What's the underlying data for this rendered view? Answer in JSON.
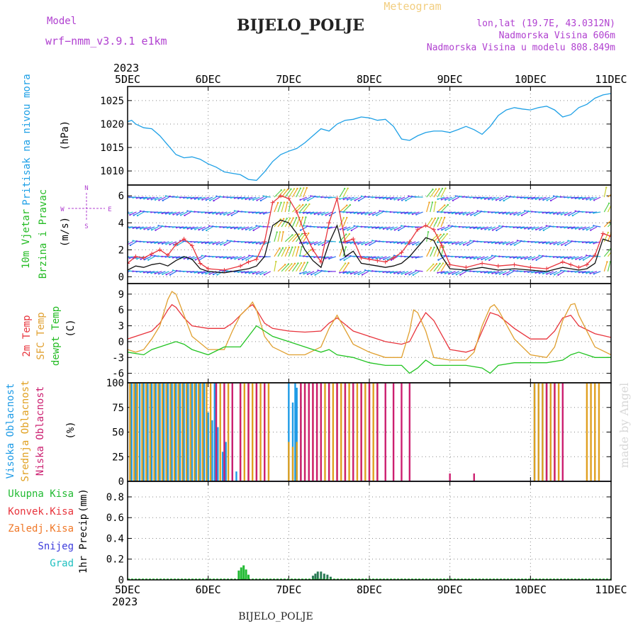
{
  "header": {
    "title": "Meteogram",
    "station": "BIJELO_POLJE",
    "model_label": "Model",
    "model_name": "wrf−nmm_v3.9.1  e1km",
    "lonlat": "lon,lat (19.7E, 43.0312N)",
    "elevation": "Nadmorska Visina 606m",
    "model_elevation": "Nadmorska Visina u modelu 808.849m",
    "watermark": "made by Angel",
    "footer_station": "BIJELO_POLJE"
  },
  "colors": {
    "pressure": "#1ea0e6",
    "temp2m": "#e8343c",
    "sfctemp": "#e0a030",
    "dewpt": "#22c422",
    "high_cloud": "#1e9be6",
    "mid_cloud": "#e0a020",
    "low_cloud": "#cc1f70",
    "precip_total": "#22bb33",
    "precip_conv": "#e8343c",
    "precip_frz": "#f07828",
    "snow": "#3c3cdc",
    "hail": "#20c0c0",
    "purple": "#b040d0",
    "green_label": "#22bb22"
  },
  "x_axis": {
    "year": "2023",
    "ticks": [
      "5DEC",
      "6DEC",
      "7DEC",
      "8DEC",
      "9DEC",
      "10DEC",
      "11DEC"
    ],
    "range_days": [
      0,
      6
    ]
  },
  "chart_data": [
    {
      "type": "line",
      "ylabel_name": "Pritisak na nivou mora",
      "ylabel_unit": "(hPa)",
      "ylim": [
        1007,
        1028
      ],
      "yticks": [
        1010,
        1015,
        1020,
        1025
      ],
      "grid": true,
      "series": [
        {
          "key": "pressure",
          "x": [
            0,
            0.05,
            0.1,
            0.2,
            0.3,
            0.4,
            0.5,
            0.6,
            0.7,
            0.8,
            0.9,
            1.0,
            1.1,
            1.2,
            1.3,
            1.4,
            1.5,
            1.6,
            1.7,
            1.8,
            1.9,
            2.0,
            2.1,
            2.2,
            2.3,
            2.4,
            2.5,
            2.6,
            2.7,
            2.8,
            2.9,
            3.0,
            3.1,
            3.2,
            3.3,
            3.4,
            3.5,
            3.6,
            3.7,
            3.8,
            3.9,
            4.0,
            4.1,
            4.2,
            4.3,
            4.4,
            4.5,
            4.6,
            4.7,
            4.8,
            4.9,
            5.0,
            5.1,
            5.2,
            5.3,
            5.4,
            5.5,
            5.6,
            5.7,
            5.8,
            5.9,
            6.0
          ],
          "y": [
            1020.5,
            1020.8,
            1020.0,
            1019.2,
            1019.0,
            1017.5,
            1015.5,
            1013.5,
            1012.8,
            1013.0,
            1012.5,
            1011.5,
            1010.8,
            1009.8,
            1009.5,
            1009.2,
            1008.2,
            1008.0,
            1009.8,
            1012.0,
            1013.5,
            1014.2,
            1014.8,
            1016.0,
            1017.5,
            1019.0,
            1018.5,
            1020.0,
            1020.8,
            1021.0,
            1021.5,
            1021.3,
            1020.8,
            1021.0,
            1019.5,
            1016.8,
            1016.5,
            1017.5,
            1018.2,
            1018.5,
            1018.5,
            1018.2,
            1018.8,
            1019.5,
            1018.8,
            1017.8,
            1019.5,
            1021.8,
            1023.0,
            1023.5,
            1023.2,
            1023.0,
            1023.5,
            1023.8,
            1023.0,
            1021.5,
            1022.0,
            1023.5,
            1024.2,
            1025.5,
            1026.2,
            1026.5
          ]
        }
      ]
    },
    {
      "type": "line",
      "ylabel_name": "10m Vjetar",
      "ylabel_name2": "Brzina i Pravac",
      "ylabel_unit": "(m/s)",
      "compass": {
        "n": "N",
        "s": "S",
        "e": "E",
        "w": "W"
      },
      "ylim": [
        -0.5,
        6.8
      ],
      "yticks": [
        0,
        2,
        4,
        6
      ],
      "grid": true,
      "series": [
        {
          "key": "speed",
          "x": [
            0,
            0.1,
            0.2,
            0.3,
            0.4,
            0.5,
            0.6,
            0.7,
            0.8,
            0.9,
            1.0,
            1.2,
            1.4,
            1.5,
            1.6,
            1.7,
            1.8,
            1.9,
            2.0,
            2.1,
            2.2,
            2.3,
            2.4,
            2.5,
            2.6,
            2.7,
            2.8,
            2.9,
            3.0,
            3.1,
            3.2,
            3.3,
            3.4,
            3.5,
            3.6,
            3.7,
            3.8,
            3.9,
            4.0,
            4.2,
            4.4,
            4.6,
            4.8,
            5.0,
            5.2,
            5.4,
            5.5,
            5.6,
            5.7,
            5.8,
            5.9,
            6.0
          ],
          "y": [
            0.5,
            0.8,
            0.7,
            0.9,
            1.0,
            0.8,
            1.2,
            1.5,
            1.3,
            0.6,
            0.4,
            0.3,
            0.5,
            0.6,
            0.8,
            1.5,
            3.8,
            4.2,
            4.0,
            3.2,
            2.0,
            1.2,
            0.7,
            2.5,
            3.8,
            1.5,
            1.9,
            1.0,
            0.9,
            0.8,
            0.7,
            0.8,
            1.0,
            1.5,
            2.2,
            2.9,
            2.7,
            1.5,
            0.6,
            0.5,
            0.7,
            0.5,
            0.6,
            0.5,
            0.4,
            0.7,
            0.6,
            0.5,
            0.6,
            1.0,
            2.8,
            2.6
          ]
        },
        {
          "key": "gust",
          "x": [
            0,
            0.1,
            0.2,
            0.3,
            0.4,
            0.5,
            0.6,
            0.7,
            0.8,
            0.9,
            1.0,
            1.2,
            1.4,
            1.5,
            1.6,
            1.7,
            1.8,
            1.9,
            2.0,
            2.1,
            2.2,
            2.3,
            2.4,
            2.5,
            2.6,
            2.7,
            2.8,
            2.9,
            3.0,
            3.1,
            3.2,
            3.3,
            3.4,
            3.5,
            3.6,
            3.7,
            3.8,
            3.9,
            4.0,
            4.2,
            4.4,
            4.6,
            4.8,
            5.0,
            5.2,
            5.4,
            5.5,
            5.6,
            5.7,
            5.8,
            5.9,
            6.0
          ],
          "y": [
            1.0,
            1.5,
            1.4,
            1.7,
            2.0,
            1.6,
            2.4,
            2.8,
            2.3,
            1.0,
            0.6,
            0.5,
            0.8,
            1.1,
            1.3,
            2.6,
            5.5,
            6.0,
            5.8,
            4.8,
            3.2,
            2.0,
            1.1,
            4.0,
            5.8,
            2.6,
            2.8,
            1.4,
            1.3,
            1.2,
            1.1,
            1.4,
            1.8,
            2.6,
            3.5,
            3.8,
            3.5,
            2.3,
            0.9,
            0.7,
            1.0,
            0.8,
            0.9,
            0.7,
            0.6,
            1.1,
            0.9,
            0.7,
            0.9,
            1.6,
            3.2,
            3.0
          ]
        }
      ]
    },
    {
      "type": "line",
      "ylabel_name": "2m Temp",
      "ylabel_name2": "SFC Temp",
      "ylabel_name3": "dewpt Temp",
      "ylabel_unit": "(C)",
      "ylim": [
        -7.8,
        11
      ],
      "yticks": [
        -6,
        -3,
        0,
        3,
        6,
        9
      ],
      "grid": true,
      "series": [
        {
          "key": "temp2m",
          "x": [
            0,
            0.2,
            0.3,
            0.4,
            0.5,
            0.55,
            0.6,
            0.7,
            0.8,
            1.0,
            1.2,
            1.3,
            1.4,
            1.5,
            1.55,
            1.6,
            1.7,
            1.8,
            2.0,
            2.2,
            2.4,
            2.5,
            2.6,
            2.8,
            3.0,
            3.2,
            3.4,
            3.5,
            3.6,
            3.7,
            3.8,
            4.0,
            4.2,
            4.3,
            4.4,
            4.5,
            4.6,
            4.8,
            5.0,
            5.2,
            5.3,
            5.4,
            5.5,
            5.6,
            5.8,
            6.0
          ],
          "y": [
            0.5,
            1.5,
            2.0,
            3.5,
            6.0,
            7.0,
            6.5,
            4.5,
            3.0,
            2.5,
            2.5,
            3.5,
            5.0,
            6.5,
            7.0,
            6.0,
            3.5,
            2.5,
            2.0,
            1.8,
            2.0,
            3.5,
            4.5,
            2.0,
            1.0,
            0.0,
            -0.5,
            0.0,
            3.0,
            5.5,
            4.0,
            -1.5,
            -2.0,
            -1.5,
            2.0,
            5.5,
            5.0,
            2.5,
            0.5,
            0.5,
            2.0,
            4.5,
            5.0,
            3.0,
            1.5,
            0.8
          ]
        },
        {
          "key": "sfctemp",
          "x": [
            0,
            0.1,
            0.2,
            0.3,
            0.4,
            0.5,
            0.55,
            0.6,
            0.7,
            0.8,
            1.0,
            1.2,
            1.3,
            1.4,
            1.5,
            1.55,
            1.6,
            1.7,
            1.8,
            2.0,
            2.2,
            2.4,
            2.5,
            2.6,
            2.8,
            3.0,
            3.2,
            3.4,
            3.5,
            3.55,
            3.6,
            3.7,
            3.8,
            4.0,
            4.2,
            4.3,
            4.4,
            4.5,
            4.55,
            4.6,
            4.8,
            5.0,
            5.2,
            5.3,
            5.4,
            5.5,
            5.55,
            5.6,
            5.8,
            6.0
          ],
          "y": [
            -1.5,
            -2.0,
            -1.5,
            0.5,
            3.0,
            8.0,
            9.5,
            9.0,
            5.0,
            1.0,
            -1.5,
            -1.5,
            2.0,
            5.0,
            6.5,
            7.5,
            6.0,
            1.0,
            -1.0,
            -2.5,
            -2.5,
            -1.0,
            2.5,
            5.0,
            -0.5,
            -2.0,
            -3.0,
            -3.0,
            2.0,
            6.0,
            5.5,
            2.0,
            -3.0,
            -3.5,
            -3.5,
            -2.0,
            3.0,
            6.5,
            7.0,
            6.0,
            0.5,
            -2.5,
            -3.0,
            -1.0,
            4.0,
            7.0,
            7.2,
            5.0,
            -1.0,
            -2.5
          ]
        },
        {
          "key": "dewpt",
          "x": [
            0,
            0.2,
            0.3,
            0.4,
            0.5,
            0.6,
            0.7,
            0.8,
            1.0,
            1.2,
            1.4,
            1.5,
            1.6,
            1.7,
            1.8,
            2.0,
            2.2,
            2.4,
            2.5,
            2.6,
            2.8,
            3.0,
            3.2,
            3.4,
            3.5,
            3.6,
            3.7,
            3.8,
            4.0,
            4.2,
            4.4,
            4.5,
            4.6,
            4.8,
            5.0,
            5.2,
            5.4,
            5.5,
            5.6,
            5.8,
            6.0
          ],
          "y": [
            -2.0,
            -2.5,
            -1.5,
            -1.0,
            -0.5,
            0.0,
            -0.5,
            -1.5,
            -2.5,
            -1.0,
            -1.0,
            1.0,
            3.0,
            2.0,
            1.0,
            0.0,
            -1.0,
            -2.0,
            -1.5,
            -2.5,
            -3.0,
            -4.0,
            -4.5,
            -4.5,
            -6.0,
            -5.0,
            -3.5,
            -4.5,
            -4.5,
            -4.5,
            -5.0,
            -6.0,
            -4.5,
            -4.0,
            -4.0,
            -4.0,
            -3.5,
            -2.5,
            -2.0,
            -3.0,
            -3.0
          ]
        }
      ]
    },
    {
      "type": "bar",
      "ylabel_name": "Visoka Oblacnost",
      "ylabel_name2": "Srednja Oblacnost",
      "ylabel_name3": "Niska Oblacnost",
      "ylabel_unit": "(%)",
      "ylim": [
        0,
        100
      ],
      "yticks": [
        0,
        25,
        50,
        75,
        100
      ],
      "grid": true,
      "series": [
        {
          "key": "high_cloud",
          "x": [
            0.05,
            0.1,
            0.15,
            0.2,
            0.25,
            0.3,
            0.35,
            0.4,
            0.45,
            0.5,
            0.55,
            0.6,
            0.65,
            0.7,
            0.75,
            0.8,
            0.85,
            0.9,
            0.95,
            1.0,
            1.05,
            1.08,
            1.12,
            1.18,
            1.22,
            1.3,
            1.35,
            2.0,
            2.05,
            2.08,
            2.1,
            2.15,
            5.05,
            5.1,
            5.15,
            5.2,
            5.25
          ],
          "y": [
            100,
            100,
            100,
            100,
            100,
            100,
            100,
            100,
            100,
            100,
            100,
            100,
            100,
            100,
            100,
            100,
            100,
            100,
            100,
            70,
            62,
            100,
            55,
            30,
            40,
            48,
            10,
            100,
            80,
            100,
            95,
            90,
            100,
            100,
            100,
            100,
            100
          ]
        },
        {
          "key": "mid_cloud",
          "x": [
            0.03,
            0.08,
            0.12,
            0.18,
            0.23,
            0.28,
            0.33,
            0.38,
            0.43,
            0.48,
            0.53,
            0.58,
            0.63,
            0.68,
            0.73,
            0.78,
            0.83,
            0.88,
            0.93,
            0.98,
            1.03,
            1.15,
            1.25,
            1.4,
            1.45,
            1.5,
            1.55,
            1.6,
            1.65,
            1.75,
            2.0,
            2.05,
            2.1,
            2.15,
            2.2,
            2.25,
            2.3,
            2.35,
            2.4,
            2.45,
            2.5,
            2.55,
            2.6,
            2.65,
            2.7,
            2.75,
            2.8,
            2.85,
            2.9,
            2.95,
            3.0,
            3.05,
            3.1,
            5.05,
            5.1,
            5.15,
            5.2,
            5.25,
            5.3,
            5.35,
            5.7,
            5.75,
            5.8,
            5.85
          ],
          "y": [
            100,
            100,
            100,
            100,
            100,
            100,
            100,
            100,
            100,
            100,
            100,
            100,
            100,
            100,
            100,
            100,
            100,
            100,
            100,
            100,
            100,
            100,
            100,
            100,
            100,
            100,
            100,
            100,
            100,
            100,
            40,
            35,
            40,
            100,
            100,
            100,
            100,
            100,
            100,
            100,
            100,
            100,
            100,
            100,
            100,
            100,
            100,
            100,
            100,
            100,
            100,
            100,
            100,
            100,
            100,
            100,
            100,
            100,
            100,
            100,
            100,
            100,
            100,
            100
          ]
        },
        {
          "key": "low_cloud",
          "x": [
            1.1,
            1.2,
            1.3,
            1.4,
            1.5,
            1.6,
            1.7,
            2.15,
            2.2,
            2.25,
            2.3,
            2.35,
            2.4,
            2.5,
            2.6,
            2.7,
            2.8,
            2.9,
            3.0,
            3.1,
            3.2,
            3.3,
            3.4,
            3.5,
            4.0,
            4.3,
            5.2,
            5.3,
            5.4
          ],
          "y": [
            100,
            100,
            100,
            100,
            100,
            100,
            100,
            100,
            100,
            100,
            100,
            100,
            100,
            100,
            100,
            100,
            100,
            100,
            100,
            100,
            100,
            100,
            100,
            100,
            8,
            8,
            100,
            100,
            100
          ]
        }
      ]
    },
    {
      "type": "bar",
      "ylabel_name": "1hr Precip",
      "ylabel_unit": "(mm)",
      "ylim": [
        0,
        0.95
      ],
      "yticks": [
        0,
        0.2,
        0.4,
        0.6,
        0.8
      ],
      "grid": true,
      "legend": [
        "Ukupna Kisa",
        "Konvek.Kisa",
        "Zaledj.Kisa",
        "Snijeg",
        "Grad"
      ],
      "series": [
        {
          "key": "precip_total",
          "x": [
            1.38,
            1.41,
            1.44,
            1.47,
            1.5,
            2.3,
            2.33,
            2.36,
            2.4,
            2.44,
            2.48,
            2.52
          ],
          "y": [
            0.09,
            0.12,
            0.14,
            0.1,
            0.05,
            0.04,
            0.06,
            0.08,
            0.08,
            0.06,
            0.05,
            0.03
          ]
        }
      ]
    }
  ]
}
